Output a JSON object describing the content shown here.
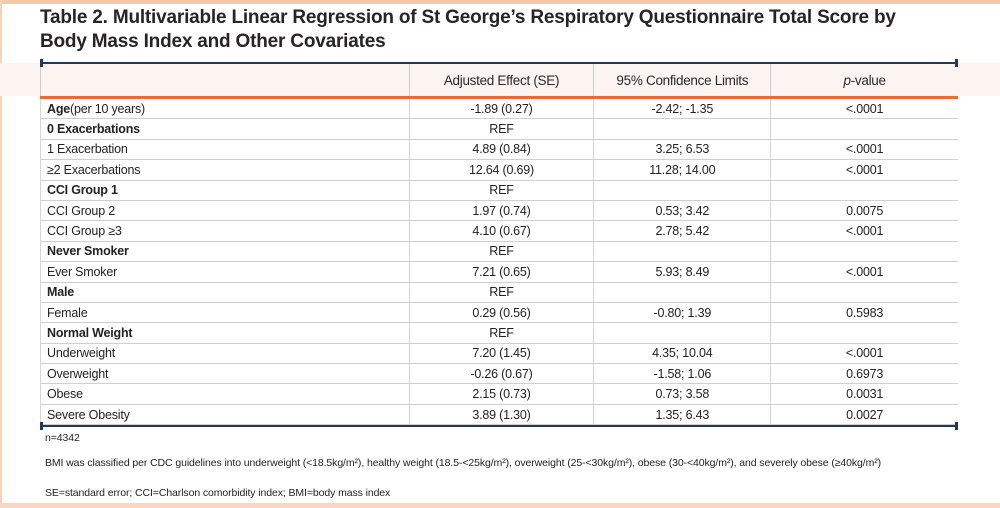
{
  "title": {
    "line1": "Table 2. Multivariable Linear Regression of St George’s Respiratory Questionnaire Total Score by",
    "line2": "Body Mass Index and Other Covariates"
  },
  "table": {
    "header": {
      "col1": "",
      "col2": "Adjusted Effect (SE)",
      "col3": "95% Confidence Limits",
      "col4_italic": "p",
      "col4_rest": "-value"
    },
    "rows": [
      {
        "label": "Age",
        "suffix": " (per 10 years)",
        "label_bold": true,
        "effect": "-1.89 (0.27)",
        "ci": "-2.42; -1.35",
        "p": "<.0001"
      },
      {
        "label": "0 Exacerbations",
        "suffix": "",
        "label_bold": true,
        "effect": "REF",
        "ci": "",
        "p": ""
      },
      {
        "label": "1 Exacerbation",
        "suffix": "",
        "label_bold": false,
        "effect": "4.89 (0.84)",
        "ci": "3.25; 6.53",
        "p": "<.0001"
      },
      {
        "label": "≥2 Exacerbations",
        "suffix": "",
        "label_bold": false,
        "effect": "12.64 (0.69)",
        "ci": "11.28; 14.00",
        "p": "<.0001"
      },
      {
        "label": "CCI Group 1",
        "suffix": "",
        "label_bold": true,
        "effect": "REF",
        "ci": "",
        "p": ""
      },
      {
        "label": "CCI Group 2",
        "suffix": "",
        "label_bold": false,
        "effect": "1.97 (0.74)",
        "ci": "0.53; 3.42",
        "p": "0.0075"
      },
      {
        "label": "CCI Group ≥3",
        "suffix": "",
        "label_bold": false,
        "effect": "4.10 (0.67)",
        "ci": "2.78; 5.42",
        "p": "<.0001"
      },
      {
        "label": "Never Smoker",
        "suffix": "",
        "label_bold": true,
        "effect": "REF",
        "ci": "",
        "p": ""
      },
      {
        "label": "Ever Smoker",
        "suffix": "",
        "label_bold": false,
        "effect": "7.21 (0.65)",
        "ci": "5.93; 8.49",
        "p": "<.0001"
      },
      {
        "label": "Male",
        "suffix": "",
        "label_bold": true,
        "effect": "REF",
        "ci": "",
        "p": ""
      },
      {
        "label": "Female",
        "suffix": "",
        "label_bold": false,
        "effect": "0.29 (0.56)",
        "ci": "-0.80; 1.39",
        "p": "0.5983"
      },
      {
        "label": "Normal Weight",
        "suffix": "",
        "label_bold": true,
        "effect": "REF",
        "ci": "",
        "p": ""
      },
      {
        "label": "Underweight",
        "suffix": "",
        "label_bold": false,
        "effect": "7.20 (1.45)",
        "ci": "4.35; 10.04",
        "p": "<.0001"
      },
      {
        "label": "Overweight",
        "suffix": "",
        "label_bold": false,
        "effect": "-0.26 (0.67)",
        "ci": "-1.58; 1.06",
        "p": "0.6973"
      },
      {
        "label": "Obese",
        "suffix": "",
        "label_bold": false,
        "effect": "2.15 (0.73)",
        "ci": "0.73; 3.58",
        "p": "0.0031"
      },
      {
        "label": "Severe Obesity",
        "suffix": "",
        "label_bold": false,
        "effect": "3.89 (1.30)",
        "ci": "1.35; 6.43",
        "p": "0.0027"
      }
    ]
  },
  "footnotes": {
    "n": "n=4342",
    "bmi": "BMI was classified per CDC guidelines into underweight (<18.5kg/m²), healthy weight (18.5-<25kg/m²), overweight (25-<30kg/m²), obese (30-<40kg/m²), and severely obese (≥40kg/m²)",
    "abbrev": "SE=standard error; CCI=Charlson comorbidity index; BMI=body mass index"
  },
  "colors": {
    "accent_navy": "#1f3864",
    "accent_orange": "#e96a35",
    "peach_border": "#f6c8aa",
    "header_band": "#fbf4f0"
  }
}
